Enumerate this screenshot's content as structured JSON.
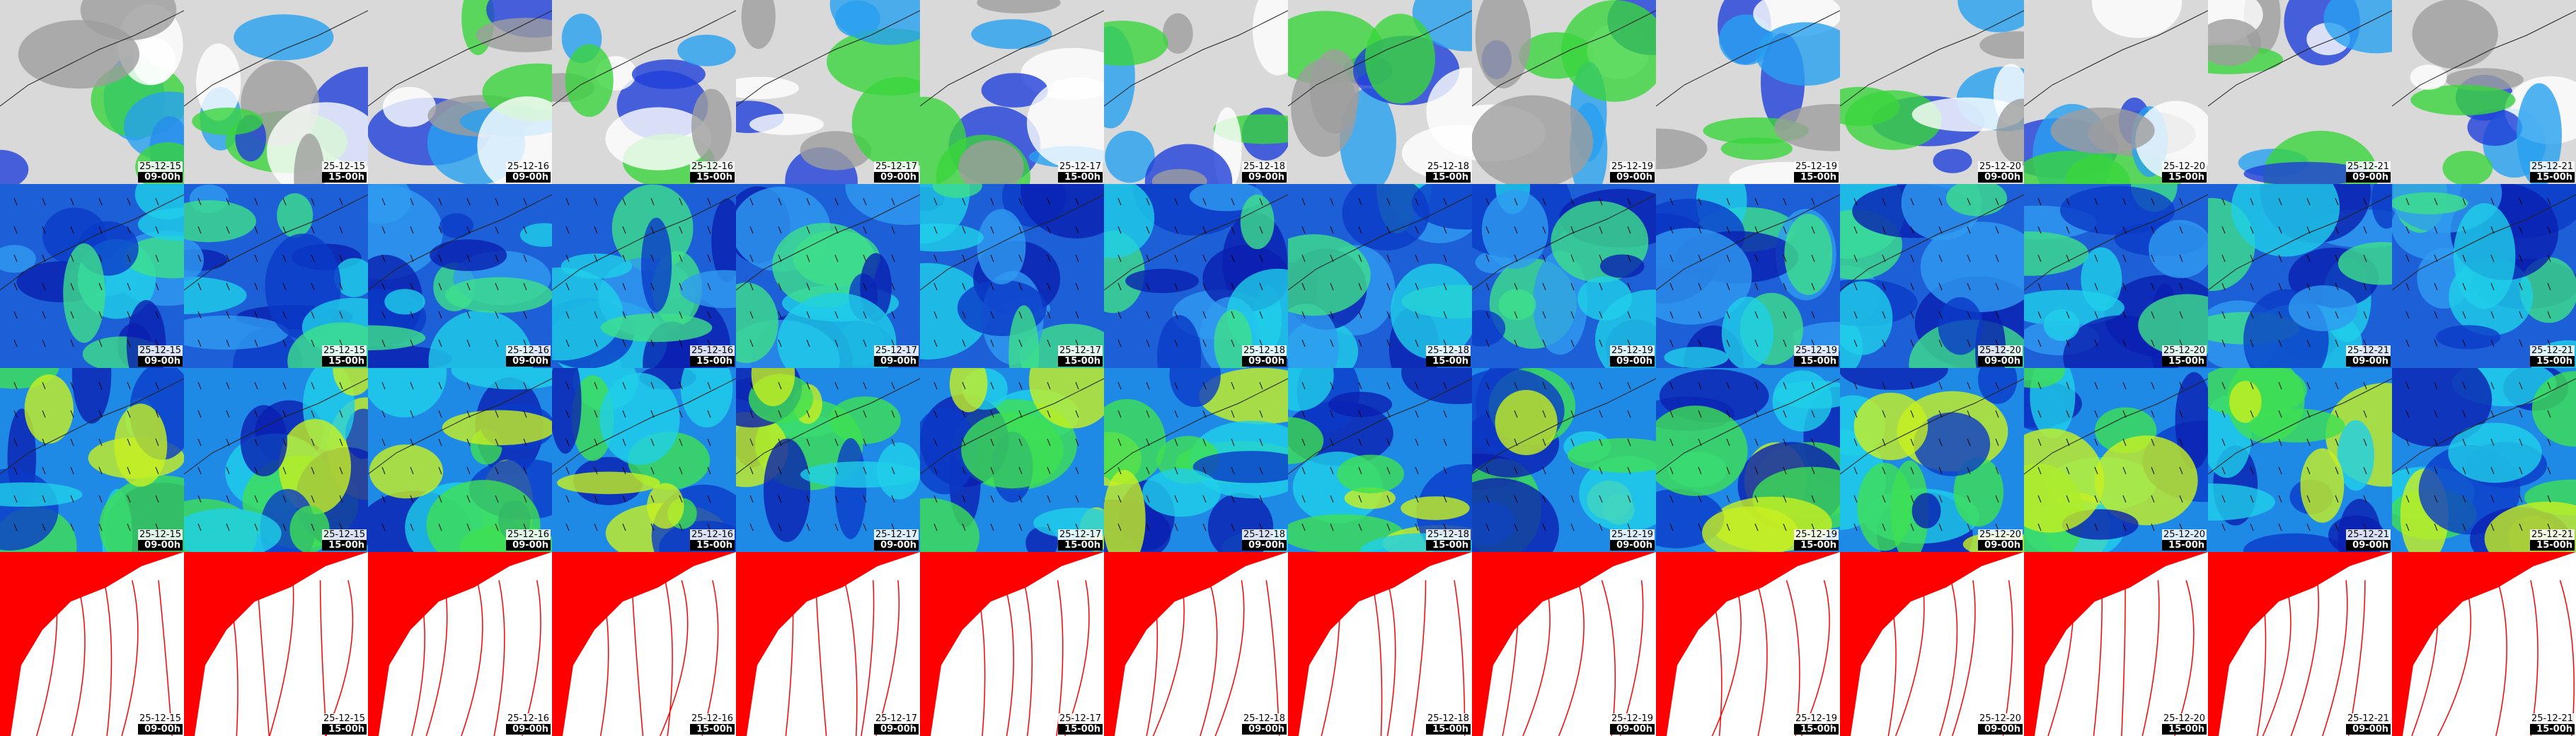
{
  "panels": [
    {
      "date": "25-12-15",
      "time": "09-00h"
    },
    {
      "date": "25-12-15",
      "time": "15-00h"
    },
    {
      "date": "25-12-16",
      "time": "09-00h"
    },
    {
      "date": "25-12-16",
      "time": "15-00h"
    },
    {
      "date": "25-12-17",
      "time": "09-00h"
    },
    {
      "date": "25-12-17",
      "time": "15-00h"
    },
    {
      "date": "25-12-18",
      "time": "09-00h"
    },
    {
      "date": "25-12-18",
      "time": "15-00h"
    },
    {
      "date": "25-12-19",
      "time": "09-00h"
    },
    {
      "date": "25-12-19",
      "time": "15-00h"
    },
    {
      "date": "25-12-20",
      "time": "09-00h"
    },
    {
      "date": "25-12-20",
      "time": "15-00h"
    },
    {
      "date": "25-12-21",
      "time": "09-00h"
    },
    {
      "date": "25-12-21",
      "time": "15-00h"
    }
  ]
}
